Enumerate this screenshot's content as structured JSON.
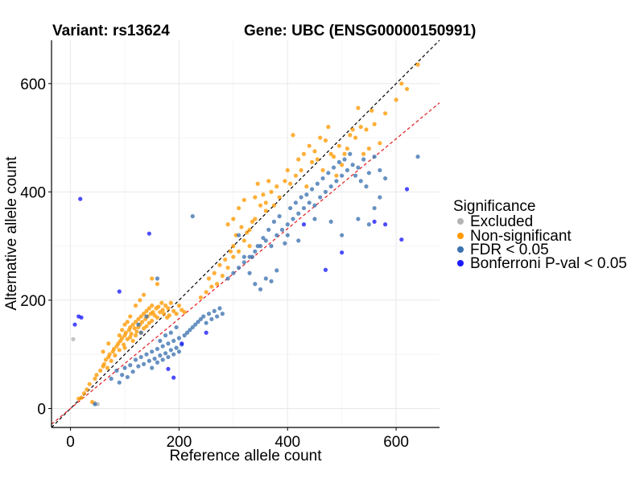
{
  "chart_data": {
    "type": "scatter",
    "title_left": "Variant: rs13624",
    "title_right": "Gene: UBC (ENSG00000150991)",
    "xlabel": "Reference allele count",
    "ylabel": "Alternative allele count",
    "xlim": [
      -35,
      680
    ],
    "ylim": [
      -35,
      680
    ],
    "xticks": [
      0,
      200,
      400,
      600
    ],
    "yticks": [
      0,
      200,
      400,
      600
    ],
    "xtick_labels": [
      "0",
      "200",
      "400",
      "600"
    ],
    "ytick_labels": [
      "0",
      "200",
      "400",
      "600"
    ],
    "grid": true,
    "reference_lines": [
      {
        "name": "identity",
        "slope": 1.0,
        "intercept": 0,
        "color": "#000000",
        "style": "dashed"
      },
      {
        "name": "fit",
        "slope": 0.83,
        "intercept": 0,
        "color": "#e41a1c",
        "style": "dashed"
      }
    ],
    "legend": {
      "title": "Significance",
      "position": "right",
      "entries": [
        {
          "label": "Excluded",
          "color": "#b3b3b3"
        },
        {
          "label": "Non-significant",
          "color": "#ff9900"
        },
        {
          "label": "FDR < 0.05",
          "color": "#3c72b0"
        },
        {
          "label": "Bonferroni P-val < 0.05",
          "color": "#1a1aff"
        }
      ]
    },
    "series": [
      {
        "name": "Excluded",
        "color": "#b3b3b3",
        "points": [
          [
            5,
            128
          ],
          [
            50,
            8
          ],
          [
            45,
            10
          ]
        ]
      },
      {
        "name": "Non-significant",
        "color": "#ff9900",
        "points": [
          [
            15,
            18
          ],
          [
            20,
            20
          ],
          [
            25,
            28
          ],
          [
            30,
            35
          ],
          [
            35,
            45
          ],
          [
            40,
            12
          ],
          [
            45,
            55
          ],
          [
            48,
            62
          ],
          [
            55,
            70
          ],
          [
            60,
            78
          ],
          [
            62,
            82
          ],
          [
            65,
            90
          ],
          [
            68,
            75
          ],
          [
            70,
            95
          ],
          [
            72,
            100
          ],
          [
            75,
            88
          ],
          [
            78,
            105
          ],
          [
            80,
            110
          ],
          [
            82,
            98
          ],
          [
            85,
            115
          ],
          [
            88,
            120
          ],
          [
            90,
            108
          ],
          [
            92,
            125
          ],
          [
            95,
            130
          ],
          [
            98,
            118
          ],
          [
            100,
            135
          ],
          [
            100,
            112
          ],
          [
            102,
            140
          ],
          [
            105,
            128
          ],
          [
            108,
            145
          ],
          [
            110,
            132
          ],
          [
            110,
            150
          ],
          [
            112,
            138
          ],
          [
            115,
            155
          ],
          [
            115,
            125
          ],
          [
            118,
            148
          ],
          [
            120,
            160
          ],
          [
            120,
            135
          ],
          [
            122,
            142
          ],
          [
            125,
            165
          ],
          [
            125,
            150
          ],
          [
            128,
            155
          ],
          [
            130,
            170
          ],
          [
            130,
            140
          ],
          [
            132,
            160
          ],
          [
            135,
            175
          ],
          [
            135,
            148
          ],
          [
            138,
            165
          ],
          [
            140,
            180
          ],
          [
            140,
            152
          ],
          [
            142,
            170
          ],
          [
            145,
            185
          ],
          [
            145,
            158
          ],
          [
            148,
            175
          ],
          [
            150,
            190
          ],
          [
            150,
            162
          ],
          [
            152,
            178
          ],
          [
            155,
            172
          ],
          [
            158,
            185
          ],
          [
            160,
            168
          ],
          [
            162,
            188
          ],
          [
            165,
            178
          ],
          [
            168,
            195
          ],
          [
            170,
            182
          ],
          [
            172,
            175
          ],
          [
            175,
            190
          ],
          [
            178,
            168
          ],
          [
            180,
            185
          ],
          [
            182,
            172
          ],
          [
            185,
            195
          ],
          [
            190,
            180
          ],
          [
            195,
            175
          ],
          [
            200,
            190
          ],
          [
            205,
            182
          ],
          [
            210,
            178
          ],
          [
            120,
            190
          ],
          [
            128,
            200
          ],
          [
            135,
            210
          ],
          [
            150,
            240
          ],
          [
            160,
            230
          ],
          [
            110,
            170
          ],
          [
            100,
            155
          ],
          [
            95,
            145
          ],
          [
            90,
            135
          ],
          [
            105,
            160
          ],
          [
            70,
            120
          ],
          [
            60,
            105
          ],
          [
            240,
            205
          ],
          [
            250,
            215
          ],
          [
            260,
            225
          ],
          [
            270,
            230
          ],
          [
            280,
            245
          ],
          [
            290,
            260
          ],
          [
            300,
            280
          ],
          [
            310,
            290
          ],
          [
            320,
            310
          ],
          [
            300,
            350
          ],
          [
            290,
            340
          ],
          [
            310,
            370
          ],
          [
            320,
            385
          ],
          [
            330,
            300
          ],
          [
            340,
            350
          ],
          [
            350,
            375
          ],
          [
            360,
            380
          ],
          [
            370,
            400
          ],
          [
            380,
            410
          ],
          [
            360,
            365
          ],
          [
            340,
            390
          ],
          [
            330,
            330
          ],
          [
            345,
            415
          ],
          [
            355,
            395
          ],
          [
            365,
            420
          ],
          [
            375,
            375
          ],
          [
            385,
            390
          ],
          [
            395,
            420
          ],
          [
            400,
            440
          ],
          [
            410,
            505
          ],
          [
            420,
            460
          ],
          [
            430,
            470
          ],
          [
            440,
            485
          ],
          [
            450,
            475
          ],
          [
            460,
            500
          ],
          [
            470,
            495
          ],
          [
            480,
            470
          ],
          [
            490,
            430
          ],
          [
            500,
            450
          ],
          [
            510,
            480
          ],
          [
            520,
            515
          ],
          [
            525,
            500
          ],
          [
            530,
            555
          ],
          [
            540,
            470
          ],
          [
            550,
            480
          ],
          [
            560,
            525
          ],
          [
            570,
            490
          ],
          [
            580,
            545
          ],
          [
            600,
            570
          ],
          [
            610,
            600
          ],
          [
            620,
            590
          ],
          [
            640,
            635
          ],
          [
            300,
            300
          ],
          [
            305,
            320
          ],
          [
            315,
            335
          ],
          [
            325,
            325
          ],
          [
            335,
            345
          ],
          [
            295,
            290
          ],
          [
            285,
            275
          ],
          [
            275,
            265
          ],
          [
            265,
            250
          ],
          [
            255,
            240
          ],
          [
            405,
            415
          ],
          [
            415,
            430
          ],
          [
            425,
            440
          ],
          [
            435,
            410
          ],
          [
            445,
            455
          ],
          [
            455,
            460
          ],
          [
            465,
            440
          ],
          [
            475,
            520
          ],
          [
            485,
            465
          ],
          [
            495,
            485
          ],
          [
            505,
            470
          ],
          [
            515,
            505
          ],
          [
            535,
            520
          ],
          [
            545,
            515
          ],
          [
            555,
            550
          ]
        ]
      },
      {
        "name": "FDR < 0.05",
        "color": "#3c72b0",
        "points": [
          [
            45,
            8
          ],
          [
            75,
            55
          ],
          [
            85,
            70
          ],
          [
            90,
            48
          ],
          [
            95,
            62
          ],
          [
            100,
            75
          ],
          [
            105,
            58
          ],
          [
            110,
            80
          ],
          [
            115,
            68
          ],
          [
            120,
            90
          ],
          [
            125,
            78
          ],
          [
            130,
            95
          ],
          [
            135,
            82
          ],
          [
            140,
            100
          ],
          [
            145,
            88
          ],
          [
            150,
            105
          ],
          [
            155,
            92
          ],
          [
            160,
            110
          ],
          [
            165,
            98
          ],
          [
            170,
            115
          ],
          [
            175,
            102
          ],
          [
            180,
            120
          ],
          [
            185,
            108
          ],
          [
            190,
            125
          ],
          [
            195,
            112
          ],
          [
            200,
            130
          ],
          [
            205,
            118
          ],
          [
            210,
            135
          ],
          [
            215,
            140
          ],
          [
            220,
            145
          ],
          [
            225,
            150
          ],
          [
            230,
            155
          ],
          [
            235,
            160
          ],
          [
            240,
            165
          ],
          [
            245,
            170
          ],
          [
            250,
            158
          ],
          [
            255,
            175
          ],
          [
            260,
            165
          ],
          [
            265,
            180
          ],
          [
            270,
            170
          ],
          [
            275,
            185
          ],
          [
            280,
            175
          ],
          [
            150,
            75
          ],
          [
            160,
            85
          ],
          [
            170,
            90
          ],
          [
            180,
            95
          ],
          [
            190,
            100
          ],
          [
            200,
            105
          ],
          [
            165,
            125
          ],
          [
            175,
            135
          ],
          [
            185,
            140
          ],
          [
            195,
            150
          ],
          [
            130,
            140
          ],
          [
            125,
            155
          ],
          [
            140,
            170
          ],
          [
            160,
            240
          ],
          [
            225,
            355
          ],
          [
            290,
            240
          ],
          [
            300,
            250
          ],
          [
            310,
            260
          ],
          [
            320,
            270
          ],
          [
            330,
            280
          ],
          [
            340,
            290
          ],
          [
            350,
            300
          ],
          [
            360,
            310
          ],
          [
            370,
            300
          ],
          [
            380,
            320
          ],
          [
            390,
            330
          ],
          [
            400,
            340
          ],
          [
            410,
            350
          ],
          [
            420,
            360
          ],
          [
            430,
            370
          ],
          [
            440,
            380
          ],
          [
            450,
            375
          ],
          [
            460,
            390
          ],
          [
            470,
            400
          ],
          [
            480,
            410
          ],
          [
            490,
            420
          ],
          [
            500,
            430
          ],
          [
            510,
            440
          ],
          [
            520,
            450
          ],
          [
            530,
            445
          ],
          [
            540,
            460
          ],
          [
            550,
            435
          ],
          [
            560,
            465
          ],
          [
            570,
            440
          ],
          [
            580,
            425
          ],
          [
            400,
            320
          ],
          [
            420,
            310
          ],
          [
            450,
            350
          ],
          [
            480,
            345
          ],
          [
            500,
            320
          ],
          [
            530,
            350
          ],
          [
            550,
            340
          ],
          [
            560,
            370
          ],
          [
            570,
            390
          ],
          [
            360,
            240
          ],
          [
            370,
            235
          ],
          [
            380,
            255
          ],
          [
            350,
            220
          ],
          [
            340,
            230
          ],
          [
            330,
            250
          ],
          [
            320,
            280
          ],
          [
            640,
            465
          ],
          [
            310,
            320
          ],
          [
            335,
            280
          ],
          [
            345,
            300
          ],
          [
            355,
            315
          ],
          [
            365,
            330
          ],
          [
            375,
            345
          ],
          [
            385,
            355
          ],
          [
            395,
            305
          ],
          [
            405,
            370
          ],
          [
            415,
            380
          ],
          [
            425,
            390
          ],
          [
            435,
            395
          ],
          [
            445,
            405
          ],
          [
            455,
            415
          ],
          [
            465,
            425
          ],
          [
            475,
            435
          ],
          [
            485,
            445
          ],
          [
            495,
            455
          ],
          [
            505,
            460
          ],
          [
            515,
            470
          ],
          [
            525,
            430
          ],
          [
            535,
            420
          ],
          [
            545,
            410
          ]
        ]
      },
      {
        "name": "Bonferroni P-val < 0.05",
        "color": "#1a1aff",
        "points": [
          [
            18,
            387
          ],
          [
            15,
            170
          ],
          [
            20,
            168
          ],
          [
            8,
            155
          ],
          [
            90,
            216
          ],
          [
            145,
            323
          ],
          [
            180,
            73
          ],
          [
            190,
            57
          ],
          [
            205,
            120
          ],
          [
            250,
            140
          ],
          [
            470,
            256
          ],
          [
            500,
            288
          ],
          [
            430,
            340
          ],
          [
            620,
            405
          ],
          [
            610,
            312
          ],
          [
            580,
            340
          ],
          [
            560,
            345
          ]
        ]
      }
    ]
  }
}
